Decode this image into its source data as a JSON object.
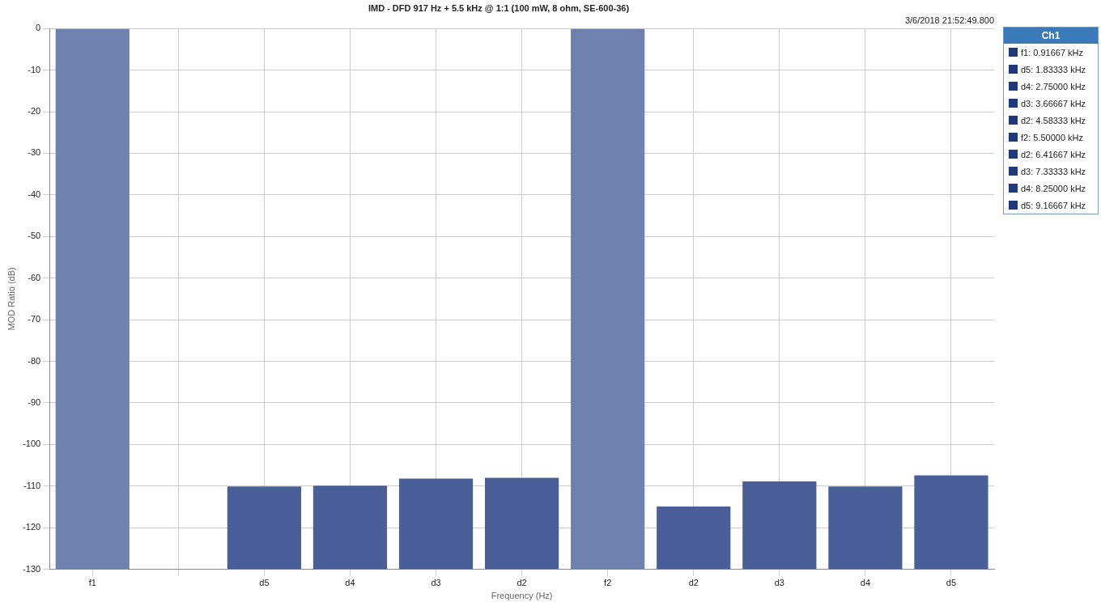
{
  "chart_data": [
    {
      "type": "bar",
      "title": "IMD - DFD 917 Hz + 5.5 kHz @ 1:1 (100 mW, 8 ohm, SE-600-36)",
      "xlabel": "Frequency (Hz)",
      "ylabel": "MOD Ratio (dB)",
      "annotations": [
        "3/6/2018 21:52:49.800"
      ],
      "categories": [
        "f1",
        null,
        "d5",
        "d4",
        "d3",
        "d2",
        "f2",
        "d2",
        "d3",
        "d4",
        "d5"
      ],
      "base": [
        -130,
        null,
        -130,
        -130,
        -130,
        -130,
        -130,
        -130,
        -130,
        -130,
        -130
      ],
      "values": [
        130,
        null,
        19.9,
        20.1,
        21.8,
        22,
        130,
        15.1,
        21.1,
        19.9,
        22.6
      ],
      "colors": [
        "#6f82ad",
        "#4a5f98",
        "#4a5f98",
        "#4a5f98",
        "#4a5f98",
        "#4a5f98",
        "#6f82ad",
        "#4a5f98",
        "#4a5f98",
        "#4a5f98",
        "#4a5f98"
      ],
      "ylim": [
        -130,
        0
      ],
      "yticks": [
        -130,
        -120,
        -110,
        -100,
        -90,
        -80,
        -70,
        -60,
        -50,
        -40,
        -30,
        -20,
        -10,
        0
      ],
      "grid": true
    },
    {
      "type": "other",
      "title": "Ch1",
      "annotations": [
        "f1: 0.91667 kHz",
        "d5: 1.83333 kHz",
        "d4: 2.75000 kHz",
        "d3: 3.66667 kHz",
        "d2: 4.58333 kHz",
        "f2: 5.50000 kHz",
        "d2: 6.41667 kHz",
        "d3: 7.33333 kHz",
        "d4: 8.25000 kHz",
        "d5: 9.16667 kHz"
      ]
    }
  ]
}
